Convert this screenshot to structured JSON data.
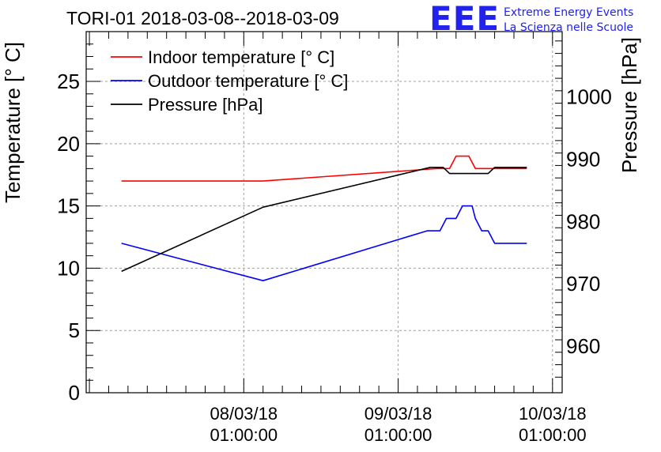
{
  "chart_data": {
    "type": "line",
    "title": "TORI-01 2018-03-08--2018-03-09",
    "ylabel": "Temperature [° C]",
    "y2label": "Pressure [hPa]",
    "xlabel": "",
    "x_ticks": [
      {
        "date": "08/03/18",
        "time": "01:00:00",
        "t": 24
      },
      {
        "date": "09/03/18",
        "time": "01:00:00",
        "t": 48
      },
      {
        "date": "10/03/18",
        "time": "01:00:00",
        "t": 72
      }
    ],
    "xlim": [
      -0.5,
      73.5
    ],
    "ylim": [
      0,
      29
    ],
    "y2lim": [
      952.5,
      1010.5
    ],
    "yticks": [
      0,
      5,
      10,
      15,
      20,
      25
    ],
    "y2ticks": [
      960,
      970,
      980,
      990,
      1000
    ],
    "grid": true,
    "legend_position": "top-left",
    "colors": {
      "indoor": "#ff0000",
      "outdoor": "#0000ff",
      "pressure": "#000000",
      "grid": "#a0a0a0",
      "logo": "#2222ee"
    },
    "series": [
      {
        "name": "Indoor temperature [° C]",
        "color": "#ff0000",
        "axis": "left",
        "x": [
          5,
          27,
          54,
          56,
          57,
          59,
          60,
          61.5,
          63,
          68
        ],
        "y": [
          17,
          17,
          18,
          18,
          19,
          19,
          18,
          18,
          18,
          18
        ]
      },
      {
        "name": "Outdoor temperature [° C]",
        "color": "#0000ff",
        "axis": "left",
        "x": [
          5,
          27,
          52.5,
          53.5,
          54.5,
          55.5,
          56,
          57,
          58,
          59.5,
          60,
          61,
          62,
          63,
          64,
          66,
          68
        ],
        "y": [
          12,
          9,
          13,
          13,
          13,
          14,
          14,
          14,
          15,
          15,
          14,
          13,
          13,
          12,
          12,
          12,
          12
        ]
      },
      {
        "name": "Pressure [hPa]",
        "color": "#000000",
        "axis": "right",
        "x": [
          5,
          27,
          53,
          54,
          55,
          56,
          57,
          60.5,
          61,
          62,
          63,
          66,
          68
        ],
        "y": [
          972,
          982.3,
          988.7,
          988.7,
          988.7,
          987.7,
          987.7,
          987.7,
          987.7,
          987.7,
          988.7,
          988.7,
          988.7
        ]
      }
    ]
  },
  "logo": {
    "mark": "EEE",
    "line1": "Extreme Energy Events",
    "line2": "La Scienza nelle Scuole"
  }
}
